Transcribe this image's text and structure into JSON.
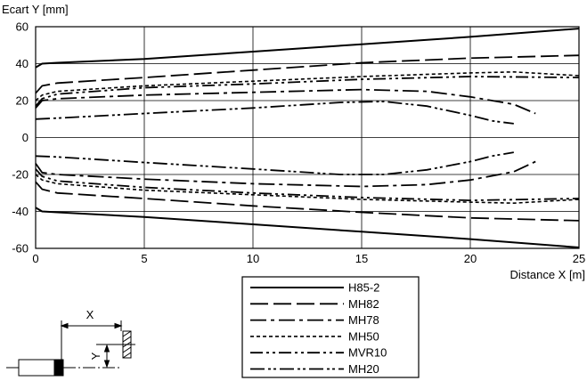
{
  "chart_data": {
    "type": "line",
    "title": "",
    "xlabel": "Distance X [m]",
    "ylabel": "Ecart Y [mm]",
    "xlim": [
      0,
      25
    ],
    "ylim": [
      -60,
      60
    ],
    "xticks": [
      0,
      5,
      10,
      15,
      20,
      25
    ],
    "yticks": [
      60,
      40,
      20,
      0,
      -20,
      -40,
      -60
    ],
    "grid": true,
    "legend_position": "bottom-right",
    "series": [
      {
        "name": "H85-2",
        "dash": "solid",
        "upper": [
          [
            0,
            38
          ],
          [
            0.3,
            40
          ],
          [
            1,
            40.5
          ],
          [
            5,
            42.5
          ],
          [
            10,
            46.5
          ],
          [
            15,
            50.5
          ],
          [
            20,
            54.5
          ],
          [
            25,
            59
          ]
        ],
        "lower": [
          [
            0,
            -38
          ],
          [
            0.3,
            -40
          ],
          [
            1,
            -40.5
          ],
          [
            5,
            -43
          ],
          [
            10,
            -47
          ],
          [
            15,
            -51
          ],
          [
            20,
            -55
          ],
          [
            25,
            -59.5
          ]
        ]
      },
      {
        "name": "MH82",
        "dash": "longdash",
        "upper": [
          [
            0,
            24
          ],
          [
            0.3,
            28
          ],
          [
            1,
            29.5
          ],
          [
            5,
            32.5
          ],
          [
            10,
            36.5
          ],
          [
            15,
            40.5
          ],
          [
            20,
            43
          ],
          [
            25,
            44.5
          ]
        ],
        "lower": [
          [
            0,
            -24
          ],
          [
            0.3,
            -28
          ],
          [
            1,
            -30
          ],
          [
            5,
            -33
          ],
          [
            10,
            -37
          ],
          [
            15,
            -40.5
          ],
          [
            20,
            -43.5
          ],
          [
            25,
            -45
          ]
        ]
      },
      {
        "name": "MH78",
        "dash": "dashdot",
        "upper": [
          [
            0,
            16
          ],
          [
            0.3,
            20
          ],
          [
            1,
            21
          ],
          [
            5,
            23
          ],
          [
            10,
            24.5
          ],
          [
            15,
            26
          ],
          [
            18,
            25
          ],
          [
            20,
            22
          ],
          [
            22,
            18
          ],
          [
            23,
            13
          ]
        ],
        "lower": [
          [
            0,
            -14
          ],
          [
            0.3,
            -19
          ],
          [
            1,
            -20
          ],
          [
            5,
            -22.5
          ],
          [
            10,
            -25
          ],
          [
            15,
            -26.5
          ],
          [
            18,
            -25.5
          ],
          [
            20,
            -23
          ],
          [
            22,
            -18.5
          ],
          [
            23,
            -13
          ]
        ]
      },
      {
        "name": "MH50",
        "dash": "short",
        "upper": [
          [
            0,
            20
          ],
          [
            0.3,
            23
          ],
          [
            1,
            25
          ],
          [
            5,
            28
          ],
          [
            10,
            30.5
          ],
          [
            15,
            33
          ],
          [
            20,
            35
          ],
          [
            22,
            35.5
          ],
          [
            25,
            33.5
          ]
        ],
        "lower": [
          [
            0,
            -20
          ],
          [
            0.3,
            -23
          ],
          [
            1,
            -25
          ],
          [
            5,
            -28.5
          ],
          [
            10,
            -31
          ],
          [
            15,
            -33.5
          ],
          [
            20,
            -35
          ],
          [
            22,
            -35.5
          ],
          [
            25,
            -33.5
          ]
        ]
      },
      {
        "name": "MVR10",
        "dash": "dashdotdot",
        "upper": [
          [
            0,
            17
          ],
          [
            0.3,
            21
          ],
          [
            1,
            23.5
          ],
          [
            5,
            27
          ],
          [
            10,
            29
          ],
          [
            15,
            31.5
          ],
          [
            20,
            33
          ],
          [
            25,
            32.5
          ]
        ],
        "lower": [
          [
            0,
            -17
          ],
          [
            0.3,
            -21
          ],
          [
            1,
            -23.5
          ],
          [
            5,
            -27
          ],
          [
            10,
            -30
          ],
          [
            15,
            -32.5
          ],
          [
            20,
            -34
          ],
          [
            25,
            -33
          ]
        ]
      },
      {
        "name": "MH20",
        "dash": "dashdotdotlong",
        "upper": [
          [
            0,
            10
          ],
          [
            1,
            10.5
          ],
          [
            5,
            13
          ],
          [
            10,
            16
          ],
          [
            14,
            19
          ],
          [
            16,
            19.5
          ],
          [
            18,
            17
          ],
          [
            20,
            12
          ],
          [
            21,
            9
          ],
          [
            22,
            7.5
          ]
        ],
        "lower": [
          [
            0,
            -10
          ],
          [
            1,
            -10.5
          ],
          [
            5,
            -13.5
          ],
          [
            10,
            -17
          ],
          [
            14,
            -20
          ],
          [
            16,
            -20
          ],
          [
            18,
            -17.5
          ],
          [
            20,
            -13
          ],
          [
            21,
            -10
          ],
          [
            22,
            -8
          ]
        ]
      }
    ]
  },
  "diagram": {
    "x_label": "X",
    "y_label": "Y"
  },
  "colors": {
    "line": "#000000",
    "grid": "#000000",
    "background": "#ffffff"
  }
}
